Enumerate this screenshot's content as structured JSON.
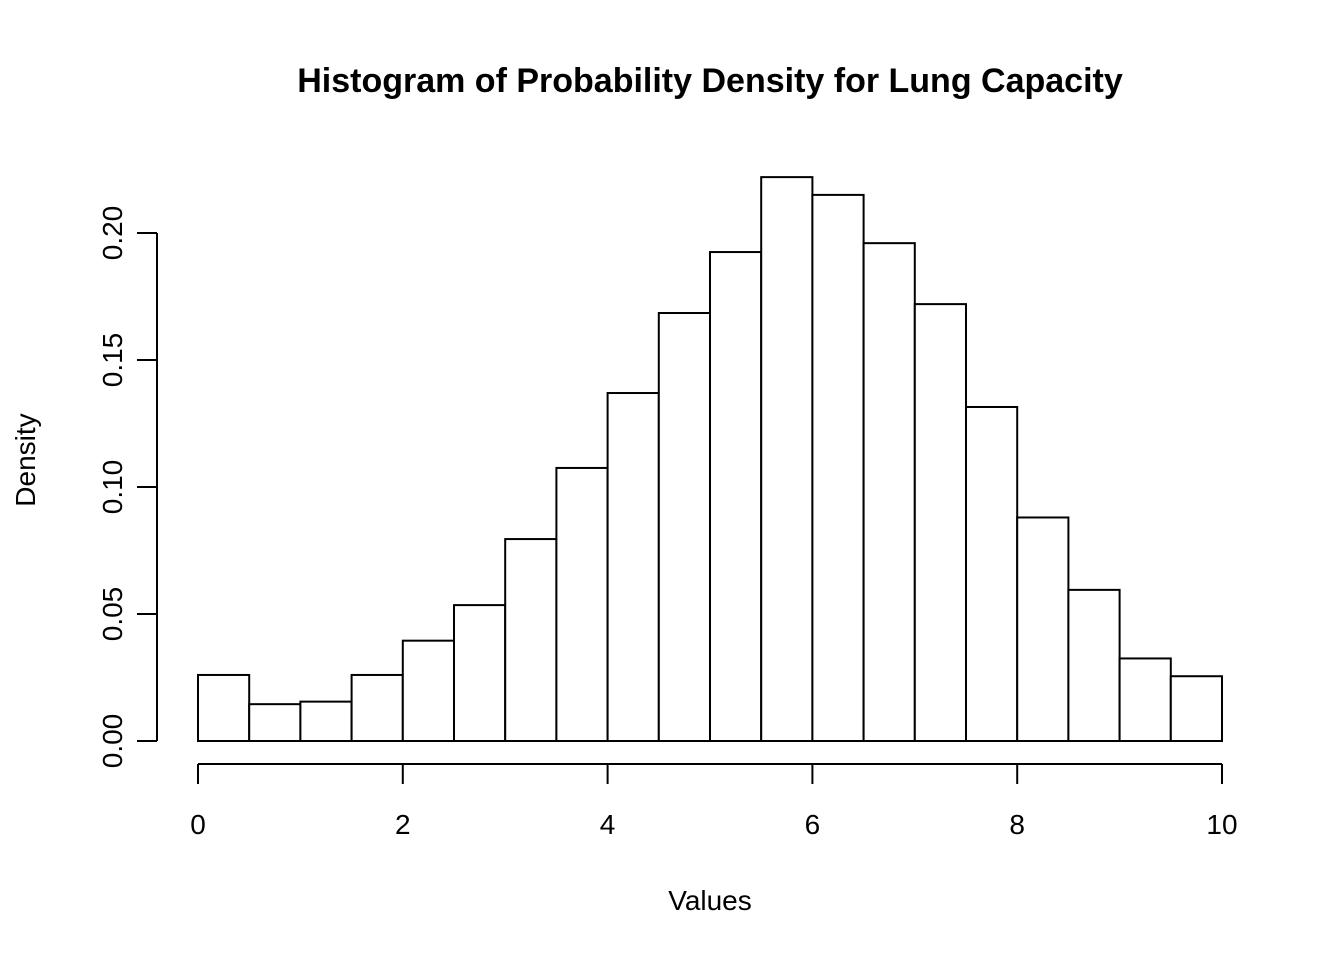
{
  "chart_data": {
    "type": "bar",
    "title": "Histogram of Probability Density for Lung Capacity",
    "xlabel": "Values",
    "ylabel": "Density",
    "xlim": [
      0,
      10
    ],
    "ylim": [
      0,
      0.22
    ],
    "x_ticks": [
      0,
      2,
      4,
      6,
      8,
      10
    ],
    "x_tick_labels": [
      "0",
      "2",
      "4",
      "6",
      "8",
      "10"
    ],
    "y_ticks": [
      0,
      0.05,
      0.1,
      0.15,
      0.2
    ],
    "y_tick_labels": [
      "0.00",
      "0.05",
      "0.10",
      "0.15",
      "0.20"
    ],
    "bin_width": 0.5,
    "bin_edges": [
      0,
      0.5,
      1,
      1.5,
      2,
      2.5,
      3,
      3.5,
      4,
      4.5,
      5,
      5.5,
      6,
      6.5,
      7,
      7.5,
      8,
      8.5,
      9,
      9.5,
      10
    ],
    "values": [
      0.026,
      0.0145,
      0.0155,
      0.026,
      0.0395,
      0.0535,
      0.0795,
      0.1075,
      0.137,
      0.1685,
      0.1925,
      0.222,
      0.215,
      0.196,
      0.172,
      0.1315,
      0.088,
      0.0595,
      0.0325,
      0.0255
    ],
    "grid": false,
    "colors": {
      "bar_fill": "#ffffff",
      "bar_stroke": "#000000"
    }
  }
}
